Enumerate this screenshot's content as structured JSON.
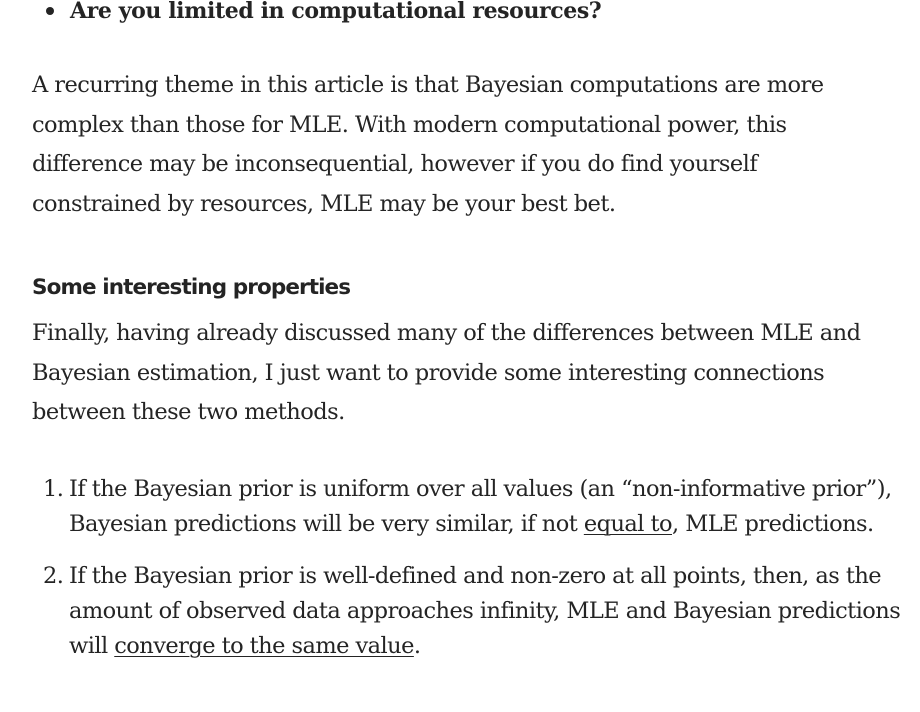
{
  "bullets": [
    {
      "text": "Are you limited in computational resources?"
    }
  ],
  "paragraph1": "A recurring theme in this article is that Bayesian computations are more complex than those for MLE. With modern computational power, this difference may be inconsequential, however if you do find yourself constrained by resources, MLE may be your best bet.",
  "section_heading": "Some interesting properties",
  "paragraph2": "Finally, having already discussed many of the differences between MLE and Bayesian estimation, I just want to provide some interesting connections between these two methods.",
  "ordered_list": [
    {
      "number": "1.",
      "before": "If the Bayesian prior is uniform over all values (an “non-informative prior”), Bayesian predictions will be very similar, if not ",
      "link": "equal to",
      "after": ", MLE predictions."
    },
    {
      "number": "2.",
      "before": "If the Bayesian prior is well-defined and non-zero at all points, then, as the amount of observed data approaches infinity, MLE and Bayesian predictions will ",
      "link": "converge to the same value",
      "after": "."
    }
  ]
}
